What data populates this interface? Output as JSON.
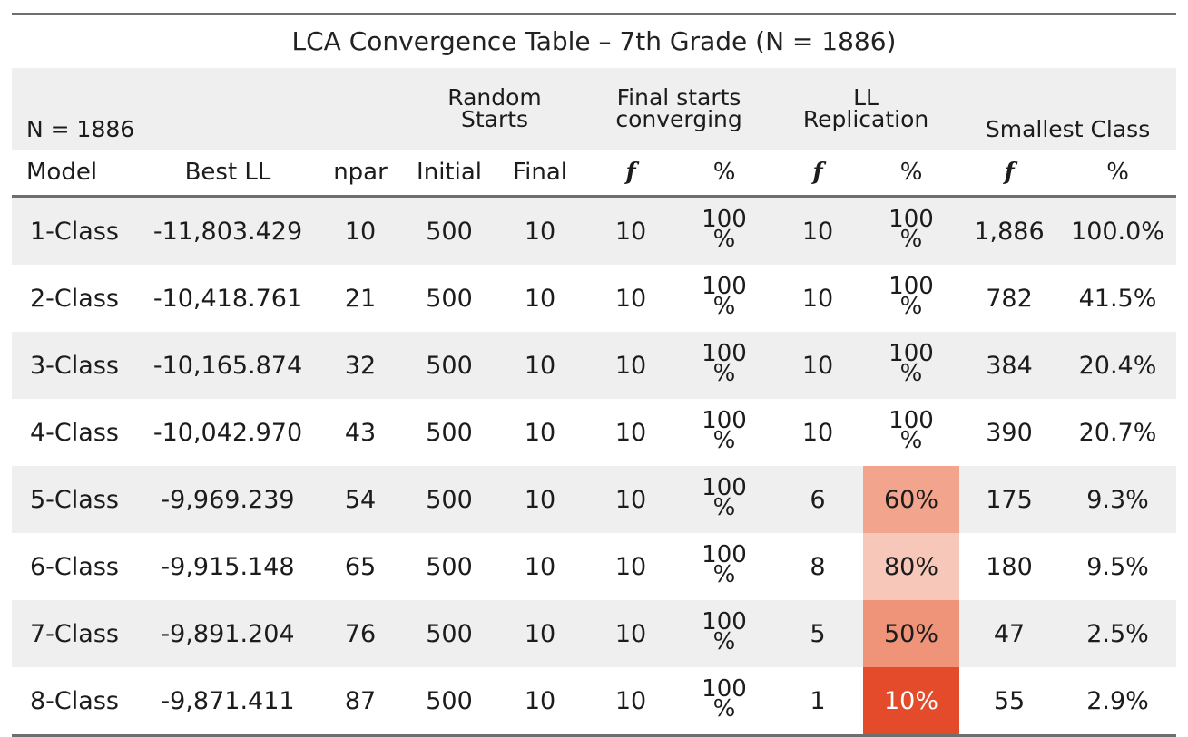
{
  "table": {
    "title": "LCA Convergence Table – 7th Grade (N = 1886)",
    "spanners": {
      "n_label": "N = 1886",
      "random_starts": [
        "Random",
        "Starts"
      ],
      "final_starts": [
        "Final starts",
        "converging"
      ],
      "ll_replication": [
        "LL",
        "Replication"
      ],
      "smallest_class": "Smallest Class"
    },
    "columns": [
      "Model",
      "Best LL",
      "npar",
      "Initial",
      "Final",
      "f",
      "%",
      "f",
      "%",
      "f",
      "%"
    ],
    "rows": [
      {
        "model": "1-Class",
        "best_ll": "-11,803.429",
        "npar": "10",
        "initial": "500",
        "final": "10",
        "conv_f": "10",
        "conv_pct_top": "100",
        "conv_pct_bot": "%",
        "rep_f": "10",
        "rep_pct": "100%",
        "rep_pct_top": "100",
        "rep_pct_bot": "%",
        "rep_stacked": true,
        "rep_color": "",
        "small_f": "1,886",
        "small_pct": "100.0%"
      },
      {
        "model": "2-Class",
        "best_ll": "-10,418.761",
        "npar": "21",
        "initial": "500",
        "final": "10",
        "conv_f": "10",
        "conv_pct_top": "100",
        "conv_pct_bot": "%",
        "rep_f": "10",
        "rep_pct": "100%",
        "rep_pct_top": "100",
        "rep_pct_bot": "%",
        "rep_stacked": true,
        "rep_color": "",
        "small_f": "782",
        "small_pct": "41.5%"
      },
      {
        "model": "3-Class",
        "best_ll": "-10,165.874",
        "npar": "32",
        "initial": "500",
        "final": "10",
        "conv_f": "10",
        "conv_pct_top": "100",
        "conv_pct_bot": "%",
        "rep_f": "10",
        "rep_pct": "100%",
        "rep_pct_top": "100",
        "rep_pct_bot": "%",
        "rep_stacked": true,
        "rep_color": "",
        "small_f": "384",
        "small_pct": "20.4%"
      },
      {
        "model": "4-Class",
        "best_ll": "-10,042.970",
        "npar": "43",
        "initial": "500",
        "final": "10",
        "conv_f": "10",
        "conv_pct_top": "100",
        "conv_pct_bot": "%",
        "rep_f": "10",
        "rep_pct": "100%",
        "rep_pct_top": "100",
        "rep_pct_bot": "%",
        "rep_stacked": true,
        "rep_color": "",
        "small_f": "390",
        "small_pct": "20.7%"
      },
      {
        "model": "5-Class",
        "best_ll": "-9,969.239",
        "npar": "54",
        "initial": "500",
        "final": "10",
        "conv_f": "10",
        "conv_pct_top": "100",
        "conv_pct_bot": "%",
        "rep_f": "6",
        "rep_pct": "60%",
        "rep_pct_top": "",
        "rep_pct_bot": "",
        "rep_stacked": false,
        "rep_color": "#f3a48d",
        "small_f": "175",
        "small_pct": "9.3%"
      },
      {
        "model": "6-Class",
        "best_ll": "-9,915.148",
        "npar": "65",
        "initial": "500",
        "final": "10",
        "conv_f": "10",
        "conv_pct_top": "100",
        "conv_pct_bot": "%",
        "rep_f": "8",
        "rep_pct": "80%",
        "rep_pct_top": "",
        "rep_pct_bot": "",
        "rep_stacked": false,
        "rep_color": "#f7c7b9",
        "small_f": "180",
        "small_pct": "9.5%"
      },
      {
        "model": "7-Class",
        "best_ll": "-9,891.204",
        "npar": "76",
        "initial": "500",
        "final": "10",
        "conv_f": "10",
        "conv_pct_top": "100",
        "conv_pct_bot": "%",
        "rep_f": "5",
        "rep_pct": "50%",
        "rep_pct_top": "",
        "rep_pct_bot": "",
        "rep_stacked": false,
        "rep_color": "#f09479",
        "small_f": "47",
        "small_pct": "2.5%"
      },
      {
        "model": "8-Class",
        "best_ll": "-9,871.411",
        "npar": "87",
        "initial": "500",
        "final": "10",
        "conv_f": "10",
        "conv_pct_top": "100",
        "conv_pct_bot": "%",
        "rep_f": "1",
        "rep_pct": "10%",
        "rep_pct_top": "",
        "rep_pct_bot": "",
        "rep_stacked": false,
        "rep_color": "#e34b2a",
        "small_f": "55",
        "small_pct": "2.9%"
      }
    ]
  },
  "chart_data": {
    "type": "table",
    "title": "LCA Convergence Table – 7th Grade (N = 1886)",
    "columns": [
      "Model",
      "Best LL",
      "npar",
      "Random Starts Initial",
      "Random Starts Final",
      "Final starts converging f",
      "Final starts converging %",
      "LL Replication f",
      "LL Replication %",
      "Smallest Class f",
      "Smallest Class %"
    ],
    "rows": [
      [
        "1-Class",
        -11803.429,
        10,
        500,
        10,
        10,
        100,
        10,
        100,
        1886,
        100.0
      ],
      [
        "2-Class",
        -10418.761,
        21,
        500,
        10,
        10,
        100,
        10,
        100,
        782,
        41.5
      ],
      [
        "3-Class",
        -10165.874,
        32,
        500,
        10,
        10,
        100,
        10,
        100,
        384,
        20.4
      ],
      [
        "4-Class",
        -10042.97,
        43,
        500,
        10,
        10,
        100,
        10,
        100,
        390,
        20.7
      ],
      [
        "5-Class",
        -9969.239,
        54,
        500,
        10,
        10,
        100,
        6,
        60,
        175,
        9.3
      ],
      [
        "6-Class",
        -9915.148,
        65,
        500,
        10,
        10,
        100,
        8,
        80,
        180,
        9.5
      ],
      [
        "7-Class",
        -9891.204,
        76,
        500,
        10,
        10,
        100,
        5,
        50,
        47,
        2.5
      ],
      [
        "8-Class",
        -9871.411,
        87,
        500,
        10,
        10,
        100,
        1,
        10,
        55,
        2.9
      ]
    ]
  }
}
